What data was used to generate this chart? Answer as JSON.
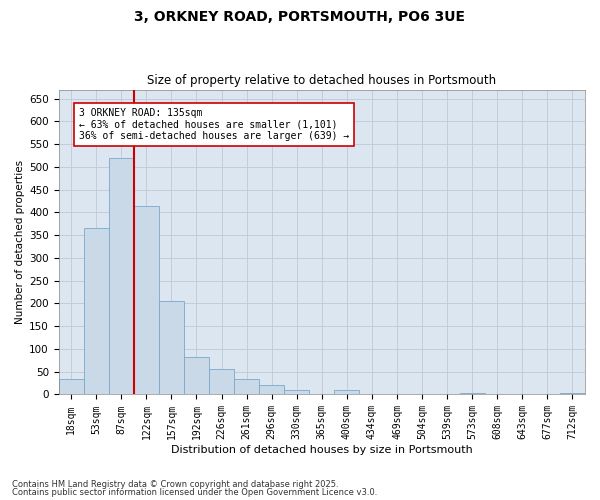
{
  "title": "3, ORKNEY ROAD, PORTSMOUTH, PO6 3UE",
  "subtitle": "Size of property relative to detached houses in Portsmouth",
  "xlabel": "Distribution of detached houses by size in Portsmouth",
  "ylabel": "Number of detached properties",
  "categories": [
    "18sqm",
    "53sqm",
    "87sqm",
    "122sqm",
    "157sqm",
    "192sqm",
    "226sqm",
    "261sqm",
    "296sqm",
    "330sqm",
    "365sqm",
    "400sqm",
    "434sqm",
    "469sqm",
    "504sqm",
    "539sqm",
    "573sqm",
    "608sqm",
    "643sqm",
    "677sqm",
    "712sqm"
  ],
  "values": [
    33,
    365,
    520,
    415,
    205,
    82,
    55,
    33,
    20,
    10,
    0,
    10,
    0,
    0,
    0,
    0,
    3,
    0,
    0,
    0,
    3
  ],
  "bar_color": "#c9d9e8",
  "bar_edge_color": "#7aa8cc",
  "grid_color": "#c0c8d8",
  "background_color": "#dce6f0",
  "vline_bin_index": 3,
  "vline_color": "#cc0000",
  "annotation_text": "3 ORKNEY ROAD: 135sqm\n← 63% of detached houses are smaller (1,101)\n36% of semi-detached houses are larger (639) →",
  "annotation_box_color": "#ffffff",
  "annotation_box_edge": "#cc0000",
  "footnote1": "Contains HM Land Registry data © Crown copyright and database right 2025.",
  "footnote2": "Contains public sector information licensed under the Open Government Licence v3.0.",
  "ylim": [
    0,
    670
  ],
  "yticks": [
    0,
    50,
    100,
    150,
    200,
    250,
    300,
    350,
    400,
    450,
    500,
    550,
    600,
    650
  ]
}
